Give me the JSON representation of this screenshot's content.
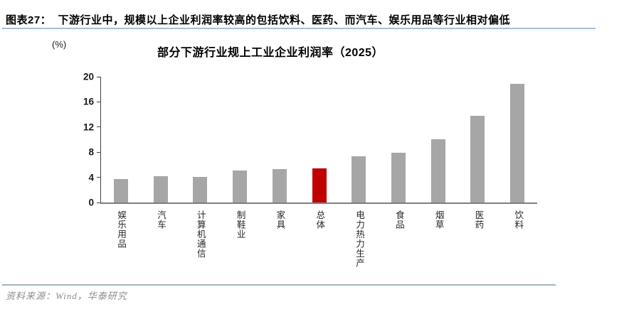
{
  "figure": {
    "caption": "图表27：  下游行业中，规模以上企业利润率较高的包括饮料、医药、而汽车、娱乐用品等行业相对偏低",
    "source": "资料来源：Wind，华泰研究"
  },
  "colors": {
    "caption_rule": "#a7c0d2",
    "source_rule": "#9fb7c0",
    "axis": "#404040",
    "baseline": "#7f7f7f"
  },
  "chart_data": {
    "type": "bar",
    "title": "部分下游行业规上工业企业利润率（2025）",
    "unit_label": "(%)",
    "categories": [
      "娱乐用品",
      "汽车",
      "计算机通信",
      "制鞋业",
      "家具",
      "总体",
      "电力热力生产",
      "食品",
      "烟草",
      "医药",
      "饮料"
    ],
    "values": [
      3.7,
      4.2,
      4.1,
      5.1,
      5.3,
      5.4,
      7.4,
      7.9,
      10.1,
      13.8,
      18.9
    ],
    "highlight_index": 5,
    "highlight_category": "总体",
    "bar_color": "#A6A6A6",
    "highlight_color": "#C00000",
    "xlabel": "",
    "ylabel": "(%)",
    "ylim": [
      0,
      20
    ],
    "yticks": [
      0,
      4,
      8,
      12,
      16,
      20
    ],
    "grid": false,
    "legend": "none"
  }
}
